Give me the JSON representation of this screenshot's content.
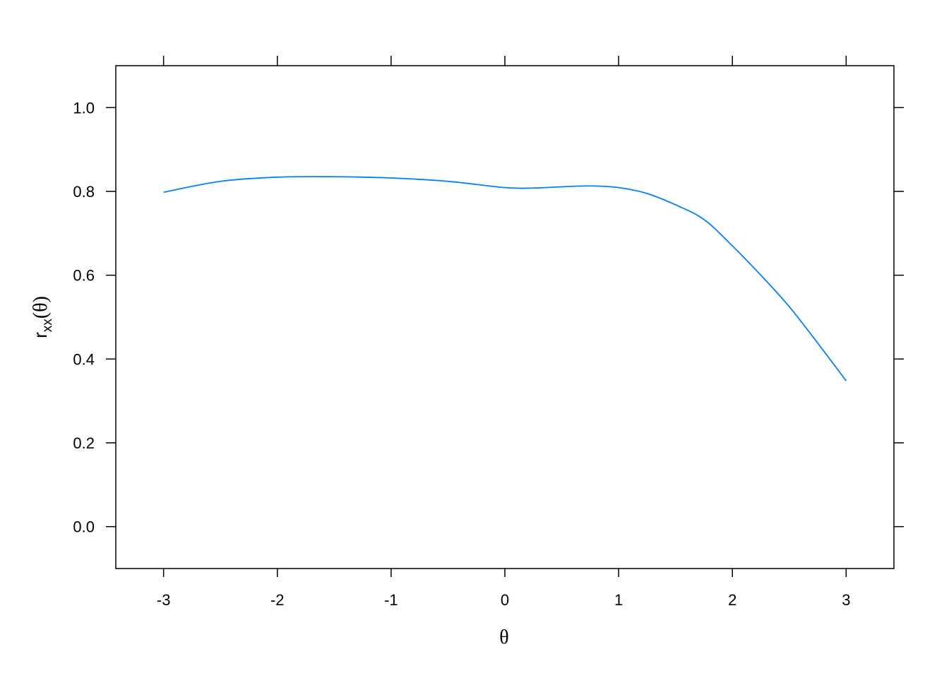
{
  "chart_data": {
    "type": "line",
    "title": "",
    "xlabel": "θ",
    "ylabel_main": "r",
    "ylabel_sub": "xx",
    "ylabel_tail": "(θ)",
    "xlim": [
      -3.42,
      3.42
    ],
    "ylim": [
      -0.1,
      1.1
    ],
    "xticks": [
      -3,
      -2,
      -1,
      0,
      1,
      2,
      3
    ],
    "xtick_labels": [
      "-3",
      "-2",
      "-1",
      "0",
      "1",
      "2",
      "3"
    ],
    "yticks": [
      0.0,
      0.2,
      0.4,
      0.6,
      0.8,
      1.0
    ],
    "ytick_labels": [
      "0.0",
      "0.2",
      "0.4",
      "0.6",
      "0.8",
      "1.0"
    ],
    "grid": false,
    "line_color": "#0080FF",
    "series": [
      {
        "x": [
          -3,
          -2.5,
          -2,
          -1.5,
          -1,
          -0.5,
          0,
          0.25,
          0.5,
          0.75,
          1,
          1.25,
          1.5,
          1.75,
          2,
          2.25,
          2.5,
          2.75,
          3
        ],
        "y": [
          0.798,
          0.824,
          0.834,
          0.835,
          0.832,
          0.824,
          0.809,
          0.808,
          0.811,
          0.813,
          0.809,
          0.795,
          0.768,
          0.733,
          0.67,
          0.6,
          0.525,
          0.438,
          0.348
        ]
      }
    ]
  }
}
